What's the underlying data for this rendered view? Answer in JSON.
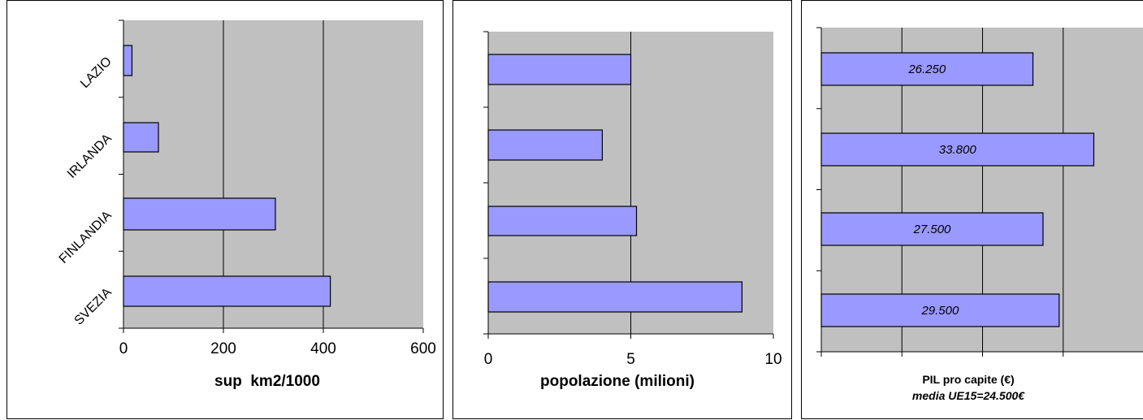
{
  "colors": {
    "plot_bg": "#c0c0c0",
    "bar_fill": "#9999ff",
    "bar_stroke": "#000000",
    "grid": "#000000"
  },
  "chart_data": [
    {
      "type": "bar",
      "orientation": "horizontal",
      "categories": [
        "LAZIO",
        "IRLANDA",
        "FINLANDIA",
        "SVEZIA"
      ],
      "values": [
        17,
        70,
        304,
        414
      ],
      "xlabel": "sup  km2/1000",
      "xlim": [
        0,
        600
      ],
      "xticks": [
        "0",
        "200",
        "400",
        "600"
      ],
      "grid": true
    },
    {
      "type": "bar",
      "orientation": "horizontal",
      "categories": [
        "LAZIO",
        "IRLANDA",
        "FINLANDIA",
        "SVEZIA"
      ],
      "values": [
        5.0,
        4.0,
        5.2,
        8.9
      ],
      "xlabel": "popolazione (milioni)",
      "xlim": [
        0,
        10
      ],
      "xticks": [
        "0",
        "5",
        "10"
      ],
      "grid": true
    },
    {
      "type": "bar",
      "orientation": "horizontal",
      "categories": [
        "LAZIO",
        "IRLANDA",
        "FINLANDIA",
        "SVEZIA"
      ],
      "values": [
        26250,
        33800,
        27500,
        29500
      ],
      "data_labels": [
        "26.250",
        "33.800",
        "27.500",
        "29.500"
      ],
      "xlabel": "PIL pro capite (€)",
      "subtitle": "media UE15=24.500€",
      "xlim": [
        0,
        40000
      ],
      "grid": true
    }
  ]
}
